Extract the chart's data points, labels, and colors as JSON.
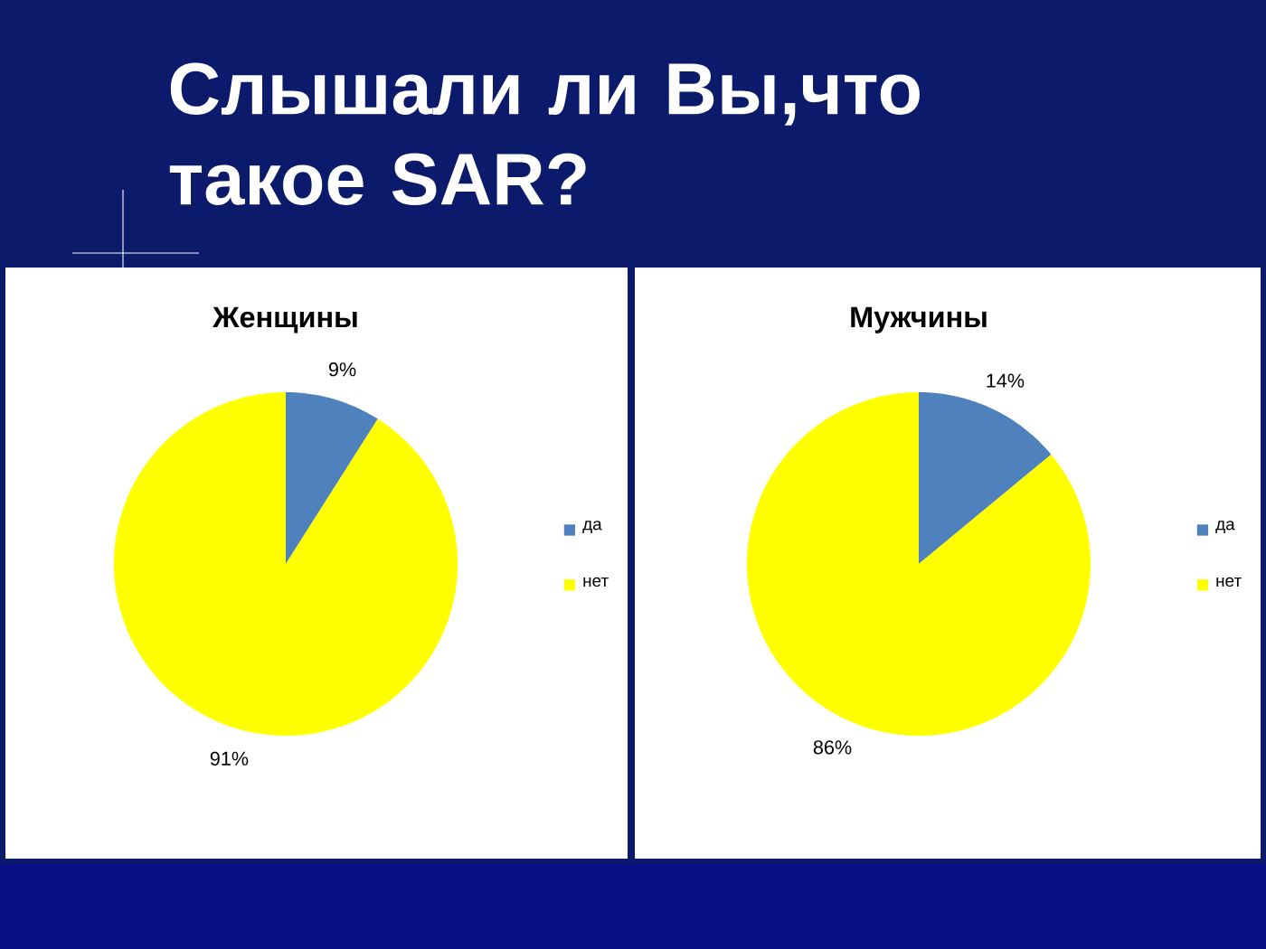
{
  "chart_data": [
    {
      "type": "other",
      "title": "Слышали ли Вы,что такое SAR?"
    },
    {
      "type": "pie",
      "title": "Женщины",
      "categories": [
        "да",
        "нет"
      ],
      "values": [
        9,
        91
      ],
      "colors": [
        "#4f81bd",
        "#ffff00"
      ],
      "value_labels": [
        "9%",
        "91%"
      ],
      "legend": "right"
    },
    {
      "type": "pie",
      "title": "Мужчины",
      "categories": [
        "да",
        "нет"
      ],
      "values": [
        14,
        86
      ],
      "colors": [
        "#4f81bd",
        "#ffff00"
      ],
      "value_labels": [
        "14%",
        "86%"
      ],
      "legend": "right"
    }
  ]
}
